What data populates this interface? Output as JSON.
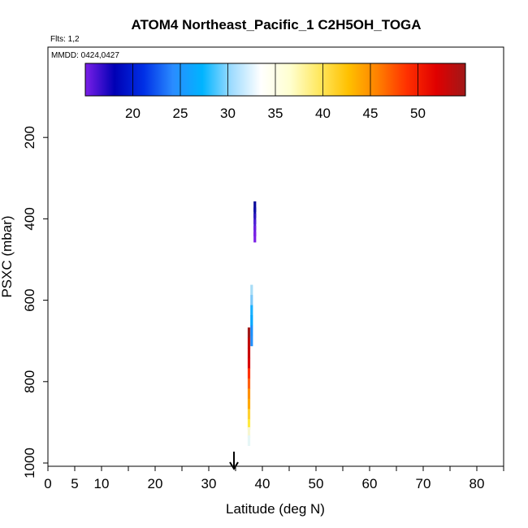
{
  "chart_data": {
    "type": "scatter",
    "title": "ATOM4 Northeast_Pacific_1 C2H5OH_TOGA",
    "flights_text": "Flts: 1,2",
    "dates_text": "MMDD: 0424,0427",
    "xlabel": "Latitude (deg N)",
    "ylabel": "PSXC (mbar)",
    "xlim": [
      0,
      85
    ],
    "ylim": [
      1000,
      0
    ],
    "x_ticks": [
      0,
      5,
      10,
      20,
      30,
      40,
      50,
      60,
      70,
      80
    ],
    "x_minor_ticks": [
      0,
      5,
      10,
      15,
      20,
      25,
      30,
      35,
      40,
      45,
      50,
      55,
      60,
      65,
      70,
      75,
      80,
      85
    ],
    "y_ticks": [
      200,
      400,
      600,
      800,
      1000
    ],
    "colorbar": {
      "range": [
        15,
        55
      ],
      "ticks": [
        20,
        25,
        30,
        35,
        40,
        45,
        50
      ],
      "colors": [
        "#7b1fe8",
        "#0000b4",
        "#0030e6",
        "#2a8cff",
        "#00b4ff",
        "#9fdcff",
        "#ffffff",
        "#ffffd0",
        "#ffe860",
        "#ffc000",
        "#ff8000",
        "#ff3000",
        "#e00000",
        "#a01818"
      ]
    },
    "arrow_latitude": 34.7,
    "points": [
      {
        "lat": 38.6,
        "p": 370,
        "color": "#0a0a9a"
      },
      {
        "lat": 38.6,
        "p": 385,
        "color": "#1010a8"
      },
      {
        "lat": 38.6,
        "p": 400,
        "color": "#3018c0"
      },
      {
        "lat": 38.6,
        "p": 415,
        "color": "#5020d8"
      },
      {
        "lat": 38.6,
        "p": 430,
        "color": "#6a20e0"
      },
      {
        "lat": 38.6,
        "p": 445,
        "color": "#7a20e6"
      },
      {
        "lat": 38.0,
        "p": 575,
        "color": "#a8dcf6"
      },
      {
        "lat": 38.0,
        "p": 600,
        "color": "#7cc8f8"
      },
      {
        "lat": 38.0,
        "p": 625,
        "color": "#18b0ff"
      },
      {
        "lat": 38.0,
        "p": 650,
        "color": "#00a8ff"
      },
      {
        "lat": 38.0,
        "p": 675,
        "color": "#1890ff"
      },
      {
        "lat": 38.0,
        "p": 700,
        "color": "#2090ff"
      },
      {
        "lat": 37.5,
        "p": 680,
        "color": "#a01818"
      },
      {
        "lat": 37.5,
        "p": 705,
        "color": "#c00c0c"
      },
      {
        "lat": 37.5,
        "p": 730,
        "color": "#c80808"
      },
      {
        "lat": 37.5,
        "p": 755,
        "color": "#d80000"
      },
      {
        "lat": 37.5,
        "p": 780,
        "color": "#ff3000"
      },
      {
        "lat": 37.5,
        "p": 805,
        "color": "#ff6010"
      },
      {
        "lat": 37.5,
        "p": 830,
        "color": "#ff9000"
      },
      {
        "lat": 37.5,
        "p": 855,
        "color": "#ffa800"
      },
      {
        "lat": 37.5,
        "p": 880,
        "color": "#ffd030"
      },
      {
        "lat": 37.5,
        "p": 905,
        "color": "#ffea40"
      },
      {
        "lat": 37.5,
        "p": 925,
        "color": "#f6f6d0"
      },
      {
        "lat": 37.5,
        "p": 945,
        "color": "#e6f6f6"
      }
    ]
  }
}
